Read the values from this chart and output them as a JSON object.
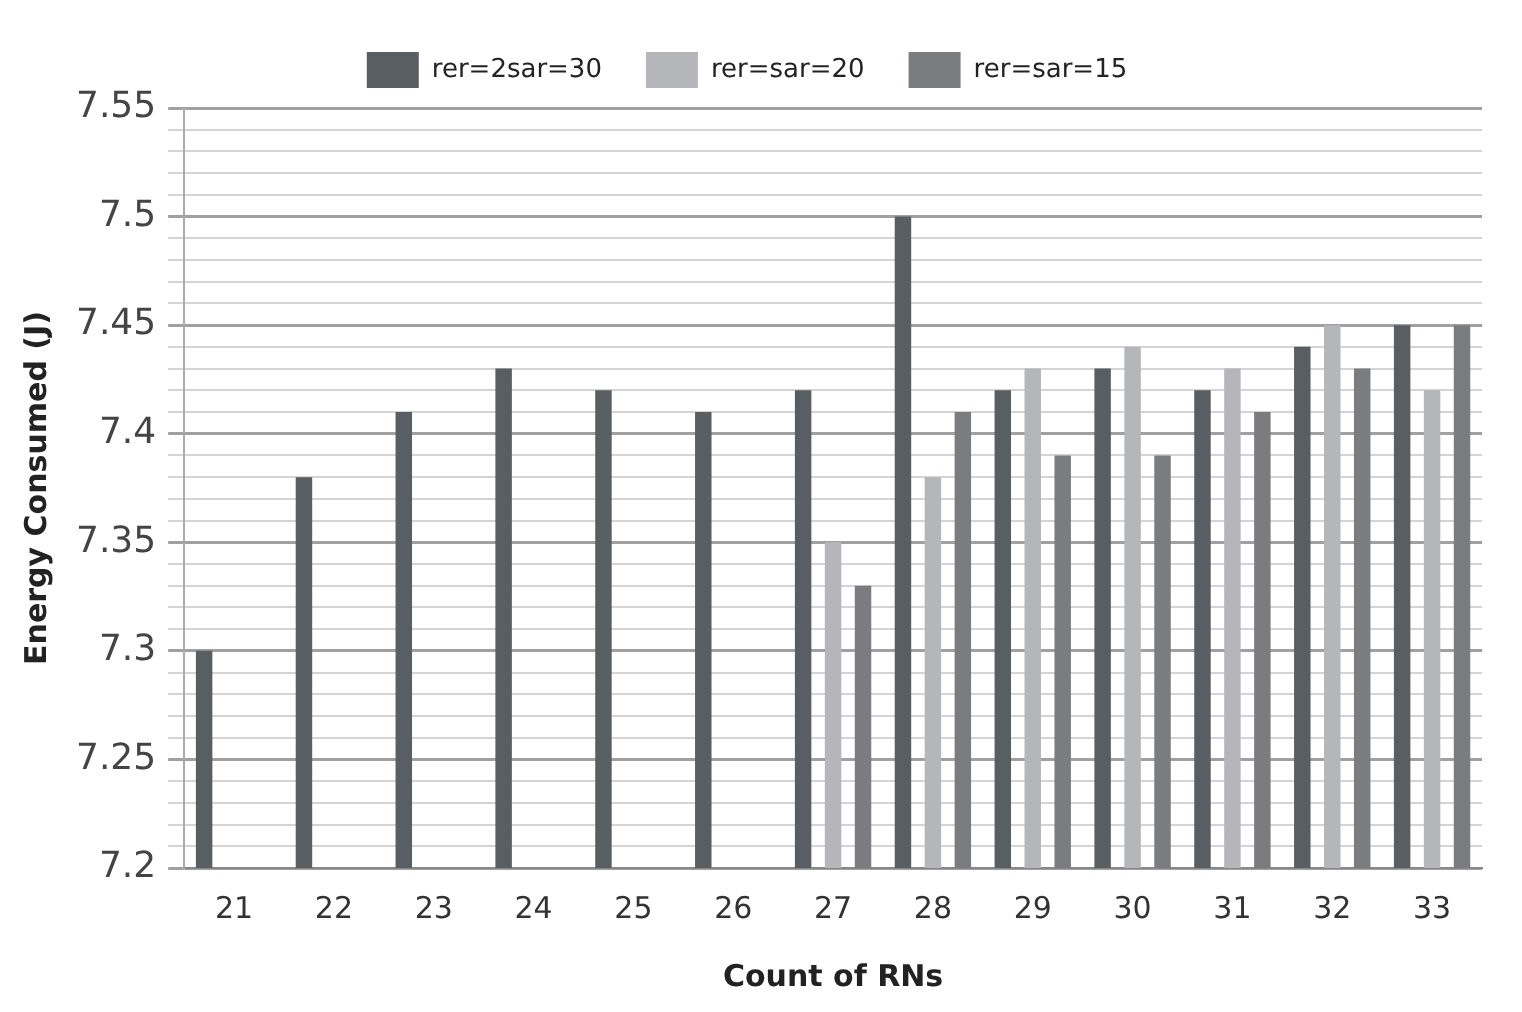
{
  "chart_data": {
    "type": "bar",
    "xlabel": "Count of RNs",
    "ylabel": "Energy Consumed (J)",
    "categories": [
      "21",
      "22",
      "23",
      "24",
      "25",
      "26",
      "27",
      "28",
      "29",
      "30",
      "31",
      "32",
      "33"
    ],
    "series": [
      {
        "name": "rer=2sar=30",
        "color": "#595e63",
        "values": [
          7.3,
          7.38,
          7.41,
          7.43,
          7.42,
          7.41,
          7.42,
          7.5,
          7.42,
          7.43,
          7.42,
          7.44,
          7.45
        ]
      },
      {
        "name": "rer=sar=20",
        "color": "#b4b6ba",
        "values": [
          null,
          null,
          null,
          null,
          null,
          null,
          7.35,
          7.38,
          7.43,
          7.44,
          7.43,
          7.45,
          7.42
        ]
      },
      {
        "name": "rer=sar=15",
        "color": "#7a7c80",
        "values": [
          null,
          null,
          null,
          null,
          null,
          null,
          7.33,
          7.41,
          7.39,
          7.39,
          7.41,
          7.43,
          7.45
        ]
      }
    ],
    "ylim": [
      7.2,
      7.55
    ],
    "yticks": [
      {
        "value": 7.2,
        "label": "7.2"
      },
      {
        "value": 7.21,
        "label": null
      },
      {
        "value": 7.22,
        "label": null
      },
      {
        "value": 7.23,
        "label": null
      },
      {
        "value": 7.24,
        "label": null
      },
      {
        "value": 7.25,
        "label": "7.25"
      },
      {
        "value": 7.26,
        "label": null
      },
      {
        "value": 7.27,
        "label": null
      },
      {
        "value": 7.28,
        "label": null
      },
      {
        "value": 7.29,
        "label": null
      },
      {
        "value": 7.3,
        "label": "7.3"
      },
      {
        "value": 7.31,
        "label": null
      },
      {
        "value": 7.32,
        "label": null
      },
      {
        "value": 7.33,
        "label": null
      },
      {
        "value": 7.34,
        "label": null
      },
      {
        "value": 7.35,
        "label": "7.35"
      },
      {
        "value": 7.36,
        "label": null
      },
      {
        "value": 7.37,
        "label": null
      },
      {
        "value": 7.38,
        "label": null
      },
      {
        "value": 7.39,
        "label": null
      },
      {
        "value": 7.4,
        "label": "7.4"
      },
      {
        "value": 7.41,
        "label": null
      },
      {
        "value": 7.42,
        "label": null
      },
      {
        "value": 7.43,
        "label": null
      },
      {
        "value": 7.44,
        "label": null
      },
      {
        "value": 7.45,
        "label": "7.45"
      },
      {
        "value": 7.46,
        "label": null
      },
      {
        "value": 7.47,
        "label": null
      },
      {
        "value": 7.48,
        "label": null
      },
      {
        "value": 7.49,
        "label": null
      },
      {
        "value": 7.5,
        "label": "7.5"
      },
      {
        "value": 7.51,
        "label": null
      },
      {
        "value": 7.52,
        "label": null
      },
      {
        "value": 7.53,
        "label": null
      },
      {
        "value": 7.54,
        "label": null
      },
      {
        "value": 7.55,
        "label": "7.55"
      }
    ],
    "grid": "y",
    "legend": "top"
  }
}
